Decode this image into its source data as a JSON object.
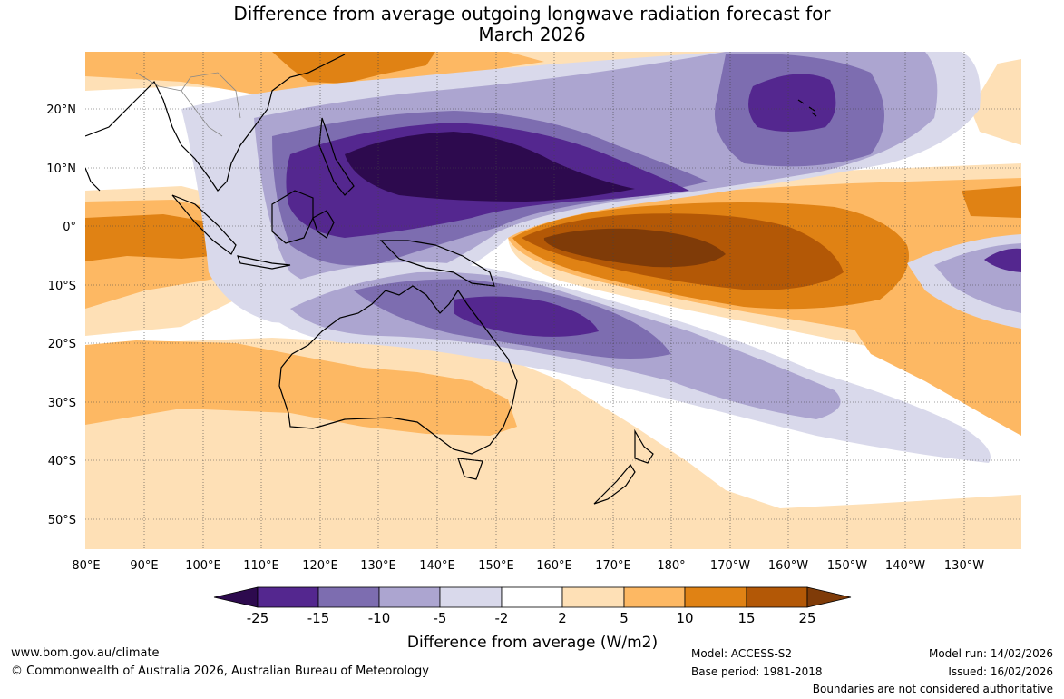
{
  "title": {
    "line1": "Difference from average outgoing longwave radiation forecast for",
    "line2": "March 2026"
  },
  "map": {
    "lat_labels": [
      "20°N",
      "10°N",
      "0°",
      "10°S",
      "20°S",
      "30°S",
      "40°S",
      "50°S"
    ],
    "lon_labels": [
      "80°E",
      "90°E",
      "100°E",
      "110°E",
      "120°E",
      "130°E",
      "140°E",
      "150°E",
      "160°E",
      "170°E",
      "180°",
      "170°W",
      "160°W",
      "150°W",
      "140°W",
      "130°W"
    ],
    "colors": {
      "lt_m25": "#2d0a4e",
      "m25_m15": "#54278f",
      "m15_m10": "#7d6db0",
      "m10_m5": "#aca5d0",
      "m5_m2": "#d9d9eb",
      "m2_2": "#ffffff",
      "p2_p5": "#fee0b6",
      "p5_p10": "#fdb863",
      "p10_p15": "#e08214",
      "p15_p25": "#b35806",
      "gt_p25": "#7f3b08",
      "coast": "#000000",
      "border": "#888888"
    }
  },
  "colorbar": {
    "ticks": [
      "-25",
      "-15",
      "-10",
      "-5",
      "-2",
      "2",
      "5",
      "10",
      "15",
      "25"
    ],
    "label": "Difference from average (W/m2)"
  },
  "footer": {
    "url": "www.bom.gov.au/climate",
    "copyright": "© Commonwealth of Australia 2026, Australian Bureau of Meteorology",
    "model": "Model: ACCESS-S2",
    "base_period": "Base period: 1981-2018",
    "model_run": "Model run: 14/02/2026",
    "issued": "Issued: 16/02/2026",
    "boundaries": "Boundaries are not considered authoritative"
  }
}
